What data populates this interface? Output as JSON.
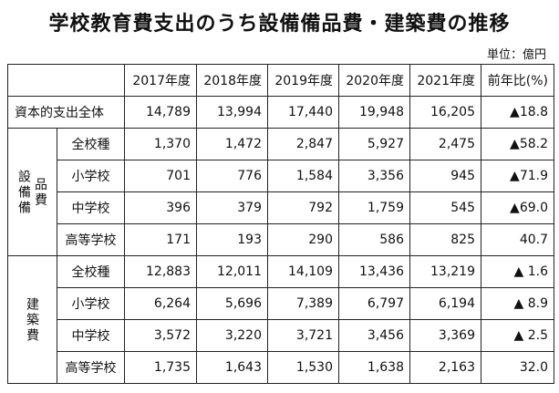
{
  "title": "学校教育費支出のうち設備備品費・建築費の推移",
  "unit": "単位：億円",
  "chart_data": {
    "type": "table",
    "title": "学校教育費支出のうち設備備品費・建築費の推移",
    "unit": "単位：億円",
    "columns": [
      "2017年度",
      "2018年度",
      "2019年度",
      "2020年度",
      "2021年度",
      "前年比(%)"
    ],
    "rows": [
      {
        "group": "",
        "label": "資本的支出全体",
        "values": [
          "14,789",
          "13,994",
          "17,440",
          "19,948",
          "16,205"
        ],
        "yoy": "▲18.8"
      },
      {
        "group": "設備備品費",
        "label": "全校種",
        "values": [
          "1,370",
          "1,472",
          "2,847",
          "5,927",
          "2,475"
        ],
        "yoy": "▲58.2"
      },
      {
        "group": "設備備品費",
        "label": "小学校",
        "values": [
          "701",
          "776",
          "1,584",
          "3,356",
          "945"
        ],
        "yoy": "▲71.9"
      },
      {
        "group": "設備備品費",
        "label": "中学校",
        "values": [
          "396",
          "379",
          "792",
          "1,759",
          "545"
        ],
        "yoy": "▲69.0"
      },
      {
        "group": "設備備品費",
        "label": "高等学校",
        "values": [
          "171",
          "193",
          "290",
          "586",
          "825"
        ],
        "yoy": "40.7"
      },
      {
        "group": "建築費",
        "label": "全校種",
        "values": [
          "12,883",
          "12,011",
          "14,109",
          "13,436",
          "13,219"
        ],
        "yoy": "▲ 1.6"
      },
      {
        "group": "建築費",
        "label": "小学校",
        "values": [
          "6,264",
          "5,696",
          "7,389",
          "6,797",
          "6,194"
        ],
        "yoy": "▲ 8.9"
      },
      {
        "group": "建築費",
        "label": "中学校",
        "values": [
          "3,572",
          "3,220",
          "3,721",
          "3,456",
          "3,369"
        ],
        "yoy": "▲ 2.5"
      },
      {
        "group": "建築費",
        "label": "高等学校",
        "values": [
          "1,735",
          "1,643",
          "1,530",
          "1,638",
          "2,163"
        ],
        "yoy": "32.0"
      }
    ]
  }
}
